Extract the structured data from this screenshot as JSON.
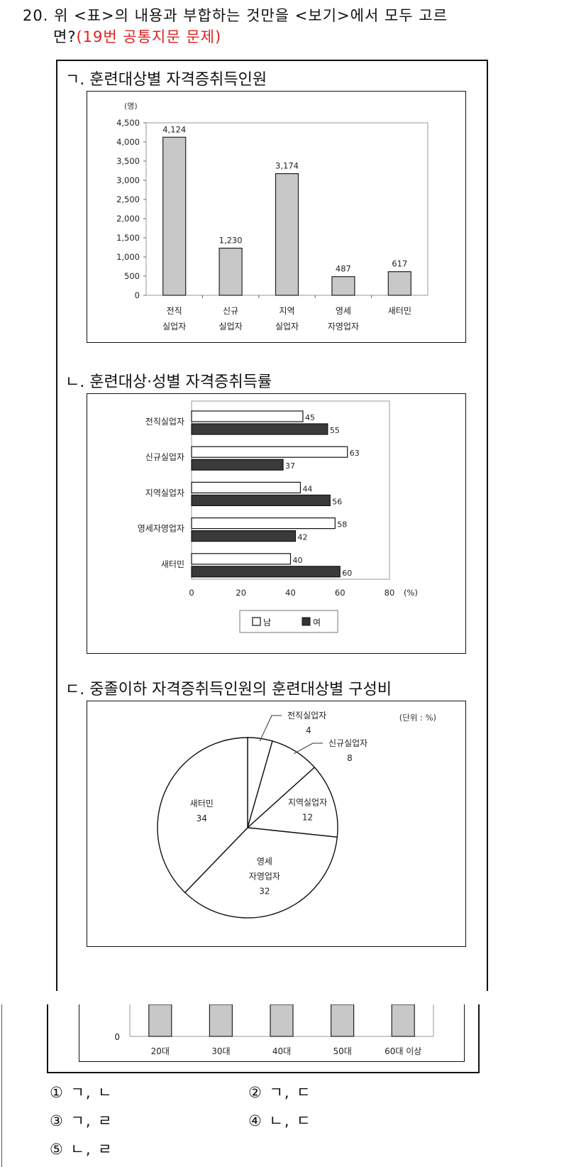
{
  "question": {
    "line1": "20. 위 <표>의 내용과 부합하는 것만을 <보기>에서 모두 고르",
    "line2_prefix": "면?",
    "line2_red": "(19번 공통지문 문제)"
  },
  "sections": {
    "a_title": "ㄱ. 훈련대상별 자격증취득인원",
    "b_title": "ㄴ. 훈련대상·성별 자격증취득률",
    "c_title": "ㄷ. 중졸이하 자격증취득인원의 훈련대상별 구성비"
  },
  "chart_data": [
    {
      "type": "bar",
      "ylabel_unit": "(명)",
      "ylim": [
        0,
        4500
      ],
      "yticks": [
        "0",
        "500",
        "1,000",
        "1,500",
        "2,000",
        "2,500",
        "3,000",
        "3,500",
        "4,000",
        "4,500"
      ],
      "ytick_values": [
        0,
        500,
        1000,
        1500,
        2000,
        2500,
        3000,
        3500,
        4000,
        4500
      ],
      "categories": [
        {
          "line1": "전직",
          "line2": "실업자"
        },
        {
          "line1": "신규",
          "line2": "실업자"
        },
        {
          "line1": "지역",
          "line2": "실업자"
        },
        {
          "line1": "영세",
          "line2": "자영업자"
        },
        {
          "line1": "새터민",
          "line2": ""
        }
      ],
      "values": [
        4124,
        1230,
        3174,
        487,
        617
      ],
      "value_labels": [
        "4,124",
        "1,230",
        "3,174",
        "487",
        "617"
      ],
      "grid": false,
      "bar_color": "#c8c8c8"
    },
    {
      "type": "bar",
      "orientation": "horizontal",
      "categories": [
        "전직실업자",
        "신규실업자",
        "지역실업자",
        "영세자영업자",
        "새터민"
      ],
      "series": [
        {
          "name": "남",
          "values": [
            45,
            63,
            44,
            58,
            40
          ],
          "color": "#ffffff"
        },
        {
          "name": "여",
          "values": [
            55,
            37,
            56,
            42,
            60
          ],
          "color": "#3a3a3a"
        }
      ],
      "xlim": [
        0,
        80
      ],
      "xticks": [
        "0",
        "20",
        "40",
        "60",
        "80"
      ],
      "xtick_values": [
        0,
        20,
        40,
        60,
        80
      ],
      "xunit": "(%)",
      "legend": {
        "male": "남",
        "female": "여",
        "placement": "bottom"
      }
    },
    {
      "type": "pie",
      "unit_label": "(단위 : %)",
      "slices": [
        {
          "name": "전직실업자",
          "value": 4
        },
        {
          "name": "신규실업자",
          "value": 8
        },
        {
          "name": "지역실업자",
          "value": 12
        },
        {
          "name_line1": "영세",
          "name_line2": "자영업자",
          "value": 32
        },
        {
          "name": "새터민",
          "value": 34
        }
      ]
    },
    {
      "type": "bar",
      "partial": true,
      "y_zero": "0",
      "categories": [
        "20대",
        "30대",
        "40대",
        "50대",
        "60대 이상"
      ]
    }
  ],
  "choices": [
    {
      "num": "①",
      "text": "ㄱ, ㄴ"
    },
    {
      "num": "②",
      "text": "ㄱ, ㄷ"
    },
    {
      "num": "③",
      "text": "ㄱ, ㄹ"
    },
    {
      "num": "④",
      "text": "ㄴ, ㄷ"
    },
    {
      "num": "⑤",
      "text": "ㄴ, ㄹ"
    }
  ]
}
